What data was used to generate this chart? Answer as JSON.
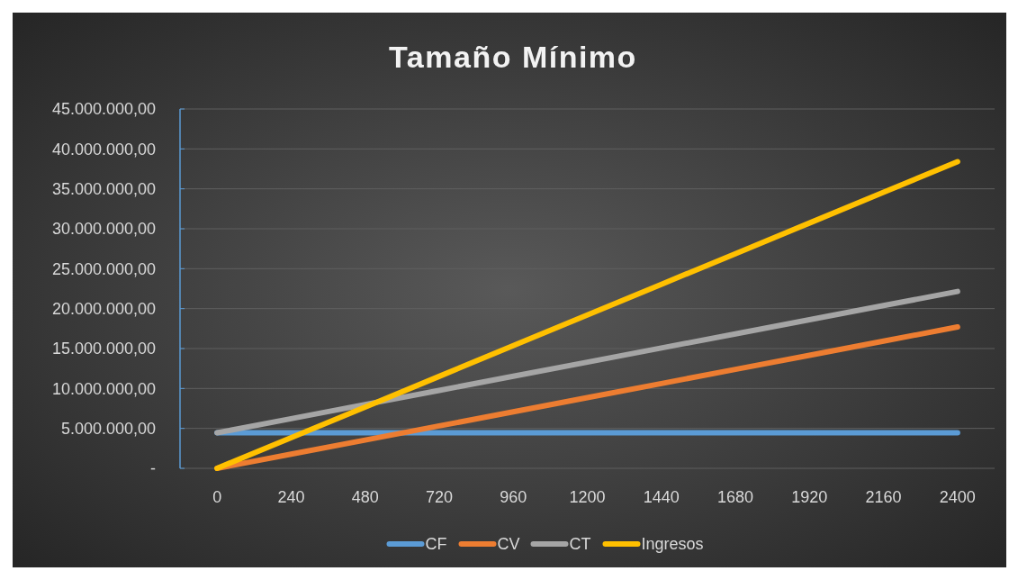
{
  "chart_data": {
    "type": "line",
    "title": "Tamaño  Mínimo",
    "categories": [
      "0",
      "240",
      "480",
      "720",
      "960",
      "1200",
      "1440",
      "1680",
      "1920",
      "2160",
      "2400"
    ],
    "series": [
      {
        "name": "CF",
        "color": "#5b9bd5",
        "values": [
          4450000,
          4450000,
          4450000,
          4450000,
          4450000,
          4450000,
          4450000,
          4450000,
          4450000,
          4450000,
          4450000
        ]
      },
      {
        "name": "CV",
        "color": "#ed7d31",
        "values": [
          0,
          1770000,
          3540000,
          5310000,
          7080000,
          8850000,
          10620000,
          12390000,
          14160000,
          15930000,
          17700000
        ]
      },
      {
        "name": "CT",
        "color": "#a5a5a5",
        "values": [
          4450000,
          6220000,
          7990000,
          9760000,
          11530000,
          13300000,
          15070000,
          16840000,
          18610000,
          20380000,
          22150000
        ]
      },
      {
        "name": "Ingresos",
        "color": "#ffc000",
        "values": [
          0,
          3840000,
          7680000,
          11520000,
          15360000,
          19200000,
          23040000,
          26880000,
          30720000,
          34560000,
          38400000
        ]
      }
    ],
    "ylim": [
      0,
      45000000
    ],
    "yticks": [
      {
        "value": 0,
        "label": "-"
      },
      {
        "value": 5000000,
        "label": "5.000.000,00"
      },
      {
        "value": 10000000,
        "label": "10.000.000,00"
      },
      {
        "value": 15000000,
        "label": "15.000.000,00"
      },
      {
        "value": 20000000,
        "label": "20.000.000,00"
      },
      {
        "value": 25000000,
        "label": "25.000.000,00"
      },
      {
        "value": 30000000,
        "label": "30.000.000,00"
      },
      {
        "value": 35000000,
        "label": "35.000.000,00"
      },
      {
        "value": 40000000,
        "label": "40.000.000,00"
      },
      {
        "value": 45000000,
        "label": "45.000.000,00"
      }
    ],
    "grid": "y",
    "legend": "bottom",
    "marker": "none",
    "line_style": "solid"
  }
}
